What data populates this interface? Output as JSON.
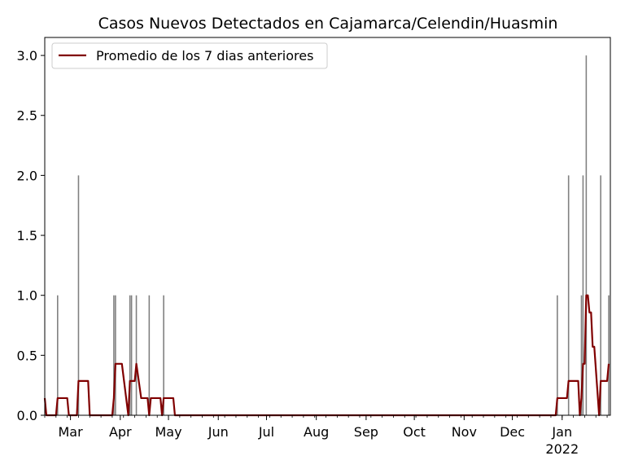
{
  "chart_data": {
    "type": "bar",
    "title": "Casos Nuevos Detectados en Cajamarca/Celendin/Huasmin",
    "xlabel": "",
    "ylabel": "",
    "x_range": [
      "2021-02-13",
      "2022-01-31"
    ],
    "ylim": [
      0,
      3.15
    ],
    "yticks": [
      "0.0",
      "0.5",
      "1.0",
      "1.5",
      "2.0",
      "2.5",
      "3.0"
    ],
    "ytick_values": [
      0,
      0.5,
      1.0,
      1.5,
      2.0,
      2.5,
      3.0
    ],
    "xticks": [
      {
        "date": "2021-03-01",
        "label": "Mar"
      },
      {
        "date": "2021-04-01",
        "label": "Apr"
      },
      {
        "date": "2021-05-01",
        "label": "May"
      },
      {
        "date": "2021-06-01",
        "label": "Jun"
      },
      {
        "date": "2021-07-01",
        "label": "Jul"
      },
      {
        "date": "2021-08-01",
        "label": "Aug"
      },
      {
        "date": "2021-09-01",
        "label": "Sep"
      },
      {
        "date": "2021-10-01",
        "label": "Oct"
      },
      {
        "date": "2021-11-01",
        "label": "Nov"
      },
      {
        "date": "2021-12-01",
        "label": "Dec"
      },
      {
        "date": "2022-01-01",
        "label": "Jan"
      }
    ],
    "year_label": "2022",
    "grid": false,
    "legend_position": "top-left",
    "bar_color": "#808080",
    "line_color": "#800000",
    "bars": [
      {
        "date": "2021-02-21",
        "value": 1
      },
      {
        "date": "2021-03-06",
        "value": 2
      },
      {
        "date": "2021-03-28",
        "value": 1
      },
      {
        "date": "2021-03-29",
        "value": 1
      },
      {
        "date": "2021-04-07",
        "value": 1
      },
      {
        "date": "2021-04-08",
        "value": 1
      },
      {
        "date": "2021-04-11",
        "value": 1
      },
      {
        "date": "2021-04-19",
        "value": 1
      },
      {
        "date": "2021-04-28",
        "value": 1
      },
      {
        "date": "2021-12-29",
        "value": 1
      },
      {
        "date": "2022-01-05",
        "value": 2
      },
      {
        "date": "2022-01-13",
        "value": 1
      },
      {
        "date": "2022-01-14",
        "value": 2
      },
      {
        "date": "2022-01-16",
        "value": 3
      },
      {
        "date": "2022-01-25",
        "value": 2
      },
      {
        "date": "2022-01-30",
        "value": 1
      }
    ],
    "series": [
      {
        "name": "Promedio de los 7 dias anteriores",
        "points": [
          [
            "2021-02-13",
            0.143
          ],
          [
            "2021-02-14",
            0
          ],
          [
            "2021-02-20",
            0
          ],
          [
            "2021-02-21",
            0.143
          ],
          [
            "2021-02-27",
            0.143
          ],
          [
            "2021-02-28",
            0
          ],
          [
            "2021-03-05",
            0
          ],
          [
            "2021-03-06",
            0.286
          ],
          [
            "2021-03-12",
            0.286
          ],
          [
            "2021-03-13",
            0
          ],
          [
            "2021-03-27",
            0
          ],
          [
            "2021-03-28",
            0.143
          ],
          [
            "2021-03-29",
            0.429
          ],
          [
            "2021-04-02",
            0.429
          ],
          [
            "2021-04-06",
            0
          ],
          [
            "2021-04-07",
            0.286
          ],
          [
            "2021-04-10",
            0.286
          ],
          [
            "2021-04-11",
            0.429
          ],
          [
            "2021-04-14",
            0.143
          ],
          [
            "2021-04-18",
            0.143
          ],
          [
            "2021-04-19",
            0
          ],
          [
            "2021-04-20",
            0.143
          ],
          [
            "2021-04-26",
            0.143
          ],
          [
            "2021-04-27",
            0
          ],
          [
            "2021-04-28",
            0.143
          ],
          [
            "2021-05-04",
            0.143
          ],
          [
            "2021-05-05",
            0
          ],
          [
            "2021-12-28",
            0
          ],
          [
            "2021-12-29",
            0.143
          ],
          [
            "2022-01-04",
            0.143
          ],
          [
            "2022-01-05",
            0.286
          ],
          [
            "2022-01-11",
            0.286
          ],
          [
            "2022-01-12",
            0
          ],
          [
            "2022-01-13",
            0.143
          ],
          [
            "2022-01-14",
            0.429
          ],
          [
            "2022-01-15",
            0.429
          ],
          [
            "2022-01-16",
            1.0
          ],
          [
            "2022-01-17",
            1.0
          ],
          [
            "2022-01-18",
            0.857
          ],
          [
            "2022-01-19",
            0.857
          ],
          [
            "2022-01-20",
            0.571
          ],
          [
            "2022-01-21",
            0.571
          ],
          [
            "2022-01-24",
            0
          ],
          [
            "2022-01-25",
            0.286
          ],
          [
            "2022-01-29",
            0.286
          ],
          [
            "2022-01-30",
            0.429
          ]
        ]
      }
    ]
  }
}
